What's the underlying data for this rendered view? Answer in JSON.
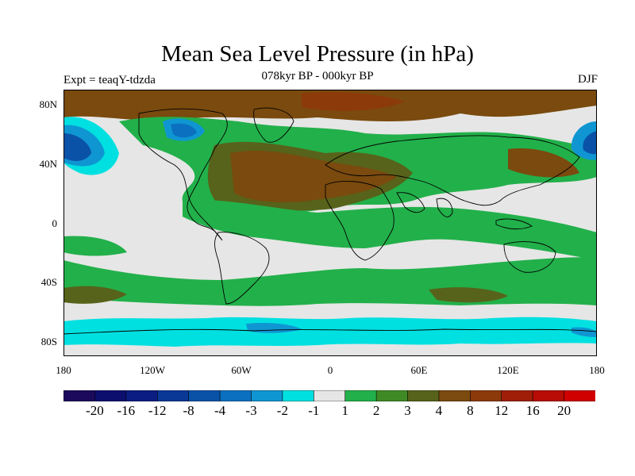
{
  "title": "Mean Sea Level Pressure (in hPa)",
  "subtitle": "078kyr BP - 000kyr BP",
  "left_label": "Expt = teaqY-tdzda",
  "right_label": "DJF",
  "lat_labels": [
    "80N",
    "40N",
    "0",
    "40S",
    "80S"
  ],
  "lon_labels": [
    "180",
    "120W",
    "60W",
    "0",
    "60E",
    "120E",
    "180"
  ],
  "colorbar": {
    "colors": [
      "#1c0b5c",
      "#0d0f6e",
      "#0b1d82",
      "#0a3896",
      "#0a52a8",
      "#0b70c0",
      "#0f96d2",
      "#00e0e0",
      "#e6e6e6",
      "#22b04a",
      "#3f8a25",
      "#57631a",
      "#7a4a0e",
      "#8c3a0a",
      "#a01e08",
      "#b80c06",
      "#d00000"
    ],
    "labels": [
      "-20",
      "-16",
      "-12",
      "-8",
      "-4",
      "-3",
      "-2",
      "-1",
      "1",
      "2",
      "3",
      "4",
      "8",
      "12",
      "16",
      "20"
    ]
  },
  "colors": {
    "neutral": "#e6e6e6",
    "green": "#22b04a",
    "brown": "#7a4a0e",
    "cyan": "#00e0e0",
    "blue": "#0b70c0",
    "coast": "#000000"
  }
}
